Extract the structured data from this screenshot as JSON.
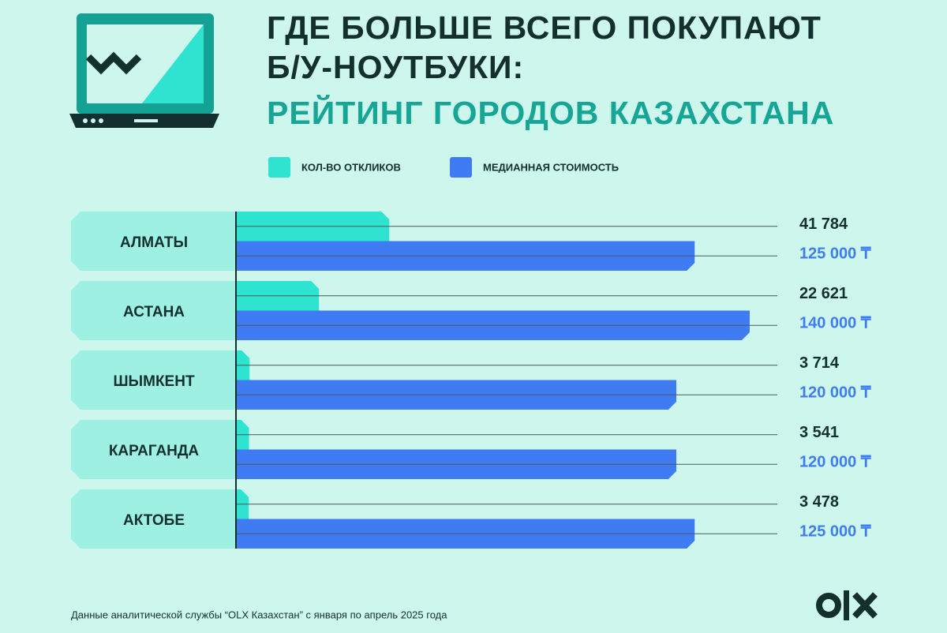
{
  "chart_data": {
    "type": "bar",
    "title": [
      "ГДЕ БОЛЬШЕ ВСЕГО ПОКУПАЮТ",
      "Б/У-НОУТБУКИ:"
    ],
    "subtitle": "РЕЙТИНГ ГОРОДОВ КАЗАХСТАНА",
    "categories": [
      "АЛМАТЫ",
      "АСТАНА",
      "ШЫМКЕНТ",
      "КАРАГАНДА",
      "АКТОБЕ"
    ],
    "series": [
      {
        "name": "КОЛ-ВО ОТКЛИКОВ",
        "color": "#2ee3d0",
        "values": [
          41784,
          22621,
          3714,
          3541,
          3478
        ],
        "value_labels": [
          "41 784",
          "22 621",
          "3 714",
          "3 541",
          "3 478"
        ]
      },
      {
        "name": "МЕДИАННАЯ СТОИМОСТЬ",
        "color": "#3f7cf4",
        "values": [
          125000,
          140000,
          120000,
          120000,
          125000
        ],
        "value_labels": [
          "125 000 ₸",
          "140 000 ₸",
          "120 000 ₸",
          "120 000 ₸",
          "125 000 ₸"
        ]
      }
    ],
    "xlim": [
      0,
      140000
    ],
    "source": "Данные аналитической службы “OLX Казахстан” с января по апрель 2025 года"
  }
}
